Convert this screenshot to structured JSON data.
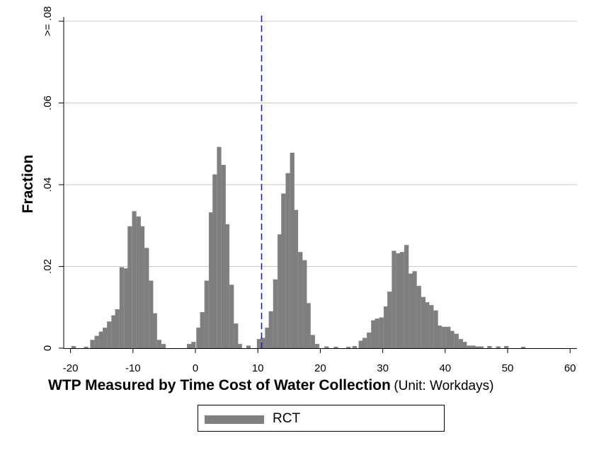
{
  "chart_data": {
    "type": "bar",
    "xlabel": "WTP Measured by Time Cost of Water Collection",
    "xlabel_unit": "(Unit: Workdays)",
    "ylabel": "Fraction",
    "xlim": [
      -20,
      60
    ],
    "ylim": [
      0,
      0.08
    ],
    "x_ticks": [
      -20,
      -10,
      0,
      10,
      20,
      30,
      40,
      50,
      60
    ],
    "x_tick_labels": [
      "-20",
      "-10",
      "0",
      "10",
      "20",
      "30",
      "40",
      "50",
      "60"
    ],
    "y_ticks": [
      0,
      0.02,
      0.04,
      0.06,
      0.08
    ],
    "y_tick_labels": [
      "0",
      ".02",
      ".04",
      ".06",
      ">= .08"
    ],
    "grid": true,
    "bin_width": 0.67,
    "reference_line": {
      "x": 10.6,
      "style": "dashed",
      "color": "#1a1adc"
    },
    "legend": {
      "position": "bottom",
      "entries": [
        "RCT"
      ]
    },
    "series": [
      {
        "name": "RCT",
        "color": "#7f7f7f",
        "bins": [
          [
            -19.5,
            0.0005
          ],
          [
            -17.5,
            0.0003
          ],
          [
            -16.5,
            0.002
          ],
          [
            -15.8,
            0.003
          ],
          [
            -15.1,
            0.004
          ],
          [
            -14.5,
            0.005
          ],
          [
            -13.8,
            0.0065
          ],
          [
            -13.1,
            0.008
          ],
          [
            -12.5,
            0.0095
          ],
          [
            -11.8,
            0.0198
          ],
          [
            -11.1,
            0.0195
          ],
          [
            -10.5,
            0.0298
          ],
          [
            -9.8,
            0.0335
          ],
          [
            -9.1,
            0.0322
          ],
          [
            -8.5,
            0.0298
          ],
          [
            -7.8,
            0.0245
          ],
          [
            -7.1,
            0.0165
          ],
          [
            -6.5,
            0.0085
          ],
          [
            -5.8,
            0.002
          ],
          [
            -5.1,
            0.001
          ],
          [
            -1.0,
            0.001
          ],
          [
            -0.3,
            0.0015
          ],
          [
            0.5,
            0.005
          ],
          [
            1.1,
            0.0088
          ],
          [
            1.8,
            0.0165
          ],
          [
            2.5,
            0.0332
          ],
          [
            3.1,
            0.0425
          ],
          [
            3.8,
            0.0492
          ],
          [
            4.5,
            0.0448
          ],
          [
            5.1,
            0.0303
          ],
          [
            5.8,
            0.0155
          ],
          [
            6.5,
            0.006
          ],
          [
            7.1,
            0.001
          ],
          [
            8.5,
            0.0006
          ],
          [
            10.2,
            0.0022
          ],
          [
            10.8,
            0.0025
          ],
          [
            11.5,
            0.005
          ],
          [
            12.1,
            0.009
          ],
          [
            12.8,
            0.0168
          ],
          [
            13.5,
            0.0278
          ],
          [
            14.1,
            0.0378
          ],
          [
            14.8,
            0.0428
          ],
          [
            15.5,
            0.0478
          ],
          [
            16.1,
            0.0338
          ],
          [
            16.8,
            0.0235
          ],
          [
            17.5,
            0.0215
          ],
          [
            18.1,
            0.011
          ],
          [
            18.8,
            0.0032
          ],
          [
            19.5,
            0.001
          ],
          [
            21.0,
            0.0004
          ],
          [
            22.5,
            0.0003
          ],
          [
            24.5,
            0.0003
          ],
          [
            25.5,
            0.0005
          ],
          [
            26.5,
            0.0018
          ],
          [
            27.1,
            0.0025
          ],
          [
            27.8,
            0.0038
          ],
          [
            28.5,
            0.0068
          ],
          [
            29.1,
            0.0072
          ],
          [
            29.8,
            0.0075
          ],
          [
            30.5,
            0.0102
          ],
          [
            31.1,
            0.0138
          ],
          [
            31.8,
            0.0238
          ],
          [
            32.5,
            0.0232
          ],
          [
            33.1,
            0.0235
          ],
          [
            33.8,
            0.0252
          ],
          [
            34.5,
            0.0182
          ],
          [
            35.1,
            0.0188
          ],
          [
            35.8,
            0.0152
          ],
          [
            36.5,
            0.0125
          ],
          [
            37.1,
            0.0112
          ],
          [
            37.8,
            0.0105
          ],
          [
            38.5,
            0.0092
          ],
          [
            39.1,
            0.0055
          ],
          [
            39.8,
            0.0052
          ],
          [
            40.5,
            0.0052
          ],
          [
            41.1,
            0.0042
          ],
          [
            41.8,
            0.0035
          ],
          [
            42.5,
            0.0022
          ],
          [
            43.1,
            0.0015
          ],
          [
            43.8,
            0.0006
          ],
          [
            44.5,
            0.0006
          ],
          [
            45.1,
            0.0004
          ],
          [
            45.8,
            0.0004
          ],
          [
            47.1,
            0.0005
          ],
          [
            48.5,
            0.0004
          ],
          [
            49.8,
            0.0005
          ],
          [
            52.5,
            0.0003
          ]
        ]
      }
    ]
  },
  "legend": {
    "label": "RCT"
  }
}
